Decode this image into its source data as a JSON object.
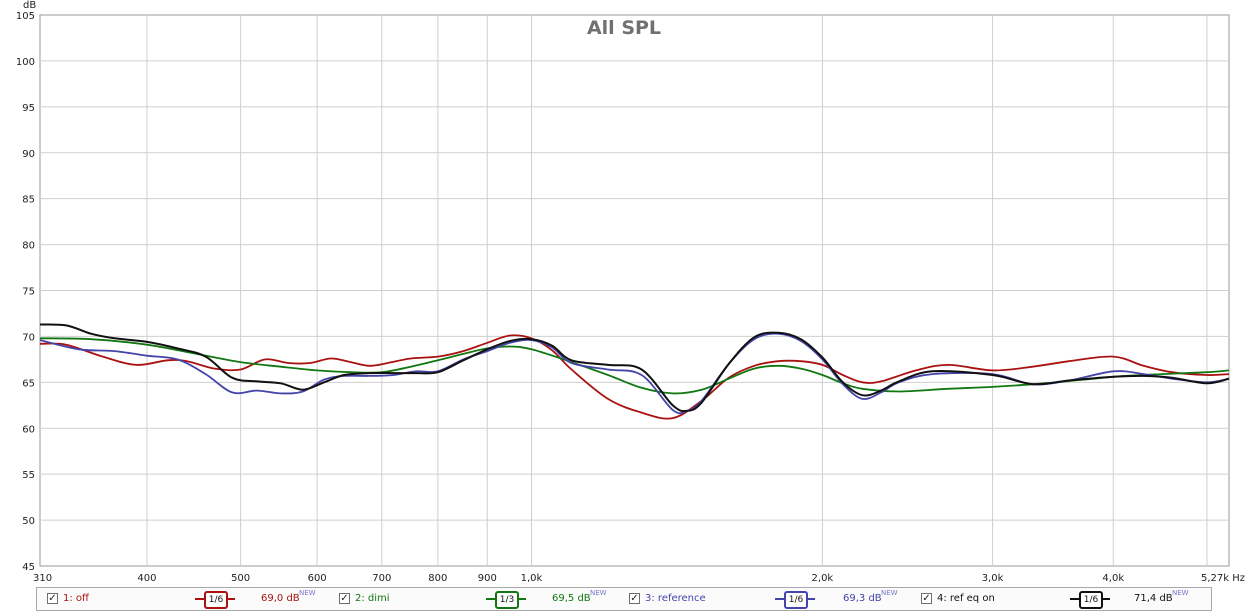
{
  "chart_data": {
    "type": "line",
    "title": "All SPL",
    "y_unit": "dB",
    "x_unit": "Hz",
    "x_scale": "log",
    "xlim": [
      310,
      5270
    ],
    "ylim": [
      45,
      105
    ],
    "y_ticks": [
      45,
      50,
      55,
      60,
      65,
      70,
      75,
      80,
      85,
      90,
      95,
      100,
      105
    ],
    "x_ticks": [
      {
        "value": 310,
        "label": "310"
      },
      {
        "value": 400,
        "label": "400"
      },
      {
        "value": 500,
        "label": "500"
      },
      {
        "value": 600,
        "label": "600"
      },
      {
        "value": 700,
        "label": "700"
      },
      {
        "value": 800,
        "label": "800"
      },
      {
        "value": 900,
        "label": "900"
      },
      {
        "value": 1000,
        "label": "1,0k"
      },
      {
        "value": 2000,
        "label": "2,0k"
      },
      {
        "value": 3000,
        "label": "3,0k"
      },
      {
        "value": 4000,
        "label": "4,0k"
      },
      {
        "value": 5270,
        "label": "5,27k Hz"
      }
    ],
    "x_gridlines": [
      310,
      400,
      500,
      600,
      700,
      800,
      900,
      1000,
      2000,
      3000,
      4000,
      5000
    ],
    "grid": true,
    "legend_position": "bottom",
    "series": [
      {
        "name": "1: off",
        "color": "#aa1111",
        "smoothing": "1/6",
        "level": "69,0 dB",
        "x": [
          310,
          330,
          360,
          390,
          420,
          440,
          470,
          500,
          530,
          560,
          590,
          620,
          650,
          680,
          710,
          750,
          800,
          850,
          900,
          950,
          1000,
          1050,
          1100,
          1200,
          1300,
          1400,
          1500,
          1600,
          1700,
          1800,
          1900,
          2000,
          2100,
          2200,
          2300,
          2500,
          2700,
          3000,
          3300,
          3600,
          4000,
          4300,
          4600,
          5000,
          5270
        ],
        "y": [
          69.2,
          69.1,
          67.8,
          66.9,
          67.4,
          67.3,
          66.5,
          66.4,
          67.5,
          67.1,
          67.1,
          67.6,
          67.2,
          66.8,
          67.1,
          67.6,
          67.8,
          68.4,
          69.3,
          70.1,
          69.8,
          68.5,
          66.4,
          63.2,
          61.7,
          61.1,
          63.0,
          65.5,
          66.8,
          67.3,
          67.3,
          66.9,
          65.8,
          65.0,
          65.1,
          66.3,
          66.9,
          66.3,
          66.7,
          67.3,
          67.8,
          66.8,
          66.1,
          65.8,
          65.9
        ]
      },
      {
        "name": "2: dimi",
        "color": "#117711",
        "smoothing": "1/3",
        "level": "69,5 dB",
        "x": [
          310,
          350,
          400,
          450,
          500,
          550,
          600,
          650,
          700,
          750,
          800,
          850,
          900,
          950,
          1000,
          1100,
          1200,
          1300,
          1400,
          1500,
          1600,
          1700,
          1800,
          1900,
          2000,
          2100,
          2200,
          2400,
          2700,
          3000,
          3400,
          4000,
          4500,
          5000,
          5270
        ],
        "y": [
          69.8,
          69.7,
          69.1,
          68.1,
          67.2,
          66.7,
          66.3,
          66.1,
          66.1,
          66.7,
          67.4,
          68.1,
          68.7,
          68.9,
          68.6,
          67.2,
          65.8,
          64.4,
          63.8,
          64.2,
          65.4,
          66.5,
          66.8,
          66.5,
          65.8,
          64.9,
          64.3,
          64.0,
          64.3,
          64.5,
          64.9,
          65.6,
          65.9,
          66.1,
          66.3
        ]
      },
      {
        "name": "3: reference",
        "color": "#4444aa",
        "smoothing": "1/6",
        "level": "69,3 dB",
        "x": [
          310,
          340,
          370,
          400,
          430,
          460,
          490,
          520,
          550,
          580,
          610,
          640,
          680,
          720,
          760,
          800,
          850,
          900,
          950,
          1000,
          1050,
          1100,
          1200,
          1300,
          1400,
          1450,
          1500,
          1600,
          1700,
          1800,
          1900,
          2000,
          2100,
          2200,
          2300,
          2400,
          2600,
          3000,
          3300,
          3600,
          4000,
          4300,
          4600,
          5000,
          5270
        ],
        "y": [
          69.6,
          68.6,
          68.4,
          67.9,
          67.5,
          65.9,
          63.9,
          64.1,
          63.8,
          64.0,
          65.3,
          65.7,
          65.7,
          65.8,
          66.2,
          66.2,
          67.5,
          68.4,
          69.3,
          69.6,
          68.8,
          67.1,
          66.4,
          65.8,
          62.0,
          61.9,
          63.0,
          67.0,
          69.7,
          70.3,
          69.5,
          67.5,
          64.8,
          63.2,
          63.9,
          65.0,
          65.9,
          65.9,
          64.8,
          65.2,
          66.2,
          65.9,
          65.4,
          65.0,
          65.4
        ]
      },
      {
        "name": "4: ref eq on",
        "color": "#111111",
        "smoothing": "1/6",
        "level": "71,4 dB",
        "x": [
          310,
          330,
          350,
          370,
          400,
          430,
          460,
          490,
          520,
          550,
          580,
          610,
          640,
          680,
          720,
          760,
          800,
          850,
          900,
          950,
          1000,
          1050,
          1100,
          1200,
          1300,
          1400,
          1450,
          1500,
          1600,
          1700,
          1800,
          1900,
          2000,
          2100,
          2200,
          2300,
          2400,
          2600,
          3000,
          3300,
          3600,
          4000,
          4300,
          4600,
          5000,
          5270
        ],
        "y": [
          71.3,
          71.2,
          70.3,
          69.8,
          69.4,
          68.7,
          67.8,
          65.5,
          65.1,
          64.9,
          64.2,
          65.0,
          65.8,
          66.0,
          66.0,
          66.0,
          66.1,
          67.4,
          68.6,
          69.5,
          69.7,
          69.0,
          67.4,
          66.9,
          66.4,
          62.5,
          61.9,
          62.8,
          67.0,
          69.9,
          70.4,
          69.7,
          67.7,
          65.0,
          63.6,
          64.1,
          65.1,
          66.2,
          65.8,
          64.8,
          65.2,
          65.6,
          65.7,
          65.5,
          64.9,
          65.4
        ]
      }
    ]
  },
  "legend": {
    "check_mark": "✓",
    "new_tag": "NEW",
    "items": [
      {
        "label": "1: off",
        "smoothing": "1/6",
        "level": "69,0 dB",
        "color": "#aa1111"
      },
      {
        "label": "2: dimi",
        "smoothing": "1/3",
        "level": "69,5 dB",
        "color": "#117711"
      },
      {
        "label": "3: reference",
        "smoothing": "1/6",
        "level": "69,3 dB",
        "color": "#4444aa"
      },
      {
        "label": "4: ref eq on",
        "smoothing": "1/6",
        "level": "71,4 dB",
        "color": "#111111"
      }
    ]
  }
}
